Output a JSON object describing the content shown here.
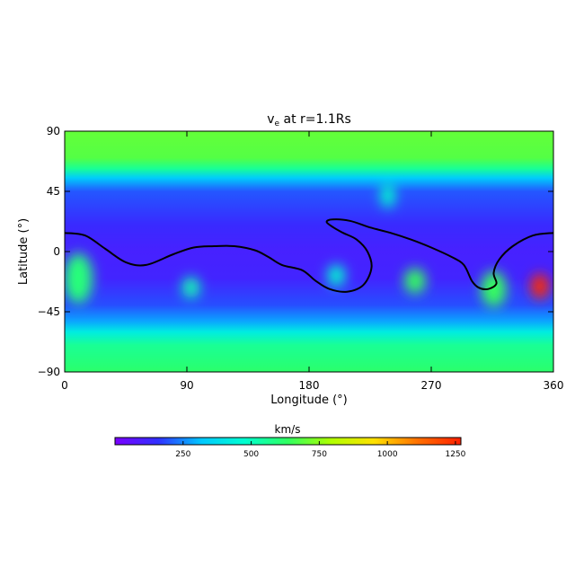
{
  "chart_data": {
    "type": "heatmap",
    "title_main": "v",
    "title_sub": "e",
    "title_rest": " at r=1.1Rs",
    "xlabel": "Longitude (°)",
    "ylabel": "Latitude (°)",
    "xlim": [
      0,
      360
    ],
    "ylim": [
      -90,
      90
    ],
    "xticks": [
      0,
      90,
      180,
      270,
      360
    ],
    "yticks": [
      -90,
      -45,
      0,
      45,
      90
    ],
    "colorbar": {
      "label": "km/s",
      "range": [
        0,
        1270
      ],
      "ticks": [
        250,
        500,
        750,
        1000,
        1250
      ],
      "colormap": [
        "#7a00ff",
        "#3030ff",
        "#00c8ff",
        "#00ffd0",
        "#30ff60",
        "#b0ff00",
        "#ffe000",
        "#ff7000",
        "#ff2000"
      ]
    },
    "background_speed_by_latitude": [
      [
        90,
        700
      ],
      [
        70,
        680
      ],
      [
        62,
        560
      ],
      [
        55,
        330
      ],
      [
        45,
        200
      ],
      [
        20,
        140
      ],
      [
        0,
        110
      ],
      [
        -20,
        120
      ],
      [
        -40,
        190
      ],
      [
        -52,
        280
      ],
      [
        -60,
        420
      ],
      [
        -70,
        560
      ],
      [
        -90,
        620
      ]
    ],
    "features": [
      {
        "lon": 10,
        "lat": -20,
        "speed": 600
      },
      {
        "lon": 93,
        "lat": -27,
        "speed": 520
      },
      {
        "lon": 200,
        "lat": -18,
        "speed": 480
      },
      {
        "lon": 258,
        "lat": -22,
        "speed": 640
      },
      {
        "lon": 316,
        "lat": -28,
        "speed": 640
      },
      {
        "lon": 350,
        "lat": -26,
        "speed": 1250
      },
      {
        "lon": 238,
        "lat": 42,
        "speed": 480
      }
    ],
    "neutral_line": [
      [
        0,
        14
      ],
      [
        15,
        12
      ],
      [
        30,
        2
      ],
      [
        45,
        -8
      ],
      [
        60,
        -10
      ],
      [
        80,
        -2
      ],
      [
        95,
        3
      ],
      [
        110,
        4
      ],
      [
        125,
        4
      ],
      [
        140,
        1
      ],
      [
        150,
        -4
      ],
      [
        160,
        -10
      ],
      [
        175,
        -14
      ],
      [
        185,
        -22
      ],
      [
        195,
        -28
      ],
      [
        208,
        -30
      ],
      [
        220,
        -25
      ],
      [
        226,
        -12
      ],
      [
        223,
        0
      ],
      [
        215,
        9
      ],
      [
        205,
        14
      ],
      [
        198,
        18
      ],
      [
        193,
        22
      ],
      [
        197,
        24
      ],
      [
        210,
        23
      ],
      [
        225,
        18
      ],
      [
        240,
        14
      ],
      [
        255,
        9
      ],
      [
        270,
        3
      ],
      [
        285,
        -4
      ],
      [
        294,
        -10
      ],
      [
        300,
        -22
      ],
      [
        305,
        -27
      ],
      [
        312,
        -28
      ],
      [
        318,
        -24
      ],
      [
        316,
        -16
      ],
      [
        320,
        -6
      ],
      [
        330,
        4
      ],
      [
        345,
        12
      ],
      [
        360,
        14
      ]
    ]
  }
}
